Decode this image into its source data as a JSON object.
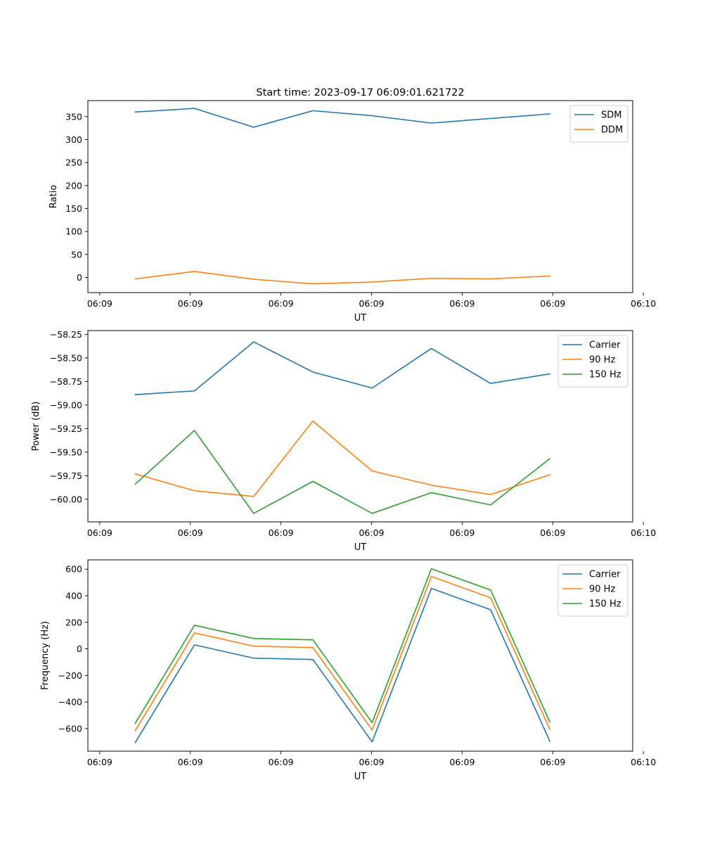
{
  "figure": {
    "title": "Start time: 2023-09-17 06:09:01.621722"
  },
  "chart_data": [
    {
      "type": "line",
      "title": "Start time: 2023-09-17 06:09:01.621722",
      "xlabel": "UT",
      "ylabel": "Ratio",
      "x": [
        1,
        2,
        3,
        4,
        5,
        6,
        7,
        8
      ],
      "xlim": [
        0.2,
        9.4
      ],
      "x_ticks": [
        0.4,
        1.93,
        3.46,
        4.99,
        6.52,
        8.05,
        9.58
      ],
      "x_tick_labels": [
        "06:09",
        "06:09",
        "06:09",
        "06:09",
        "06:09",
        "06:09",
        "06:10"
      ],
      "ylim": [
        -33,
        385
      ],
      "y_ticks": [
        0,
        50,
        100,
        150,
        200,
        250,
        300,
        350
      ],
      "y_tick_labels": [
        "0",
        "50",
        "100",
        "150",
        "200",
        "250",
        "300",
        "350"
      ],
      "legend": "top-right",
      "series": [
        {
          "name": "SDM",
          "color": "#1f77b4",
          "values": [
            360,
            368,
            327,
            363,
            352,
            336,
            346,
            356
          ]
        },
        {
          "name": "DDM",
          "color": "#ff7f0e",
          "values": [
            -3,
            13,
            -4,
            -14,
            -10,
            -2,
            -3,
            3
          ]
        }
      ]
    },
    {
      "type": "line",
      "title": "",
      "xlabel": "UT",
      "ylabel": "Power (dB)",
      "x": [
        1,
        2,
        3,
        4,
        5,
        6,
        7,
        8
      ],
      "xlim": [
        0.2,
        9.4
      ],
      "x_ticks": [
        0.4,
        1.93,
        3.46,
        4.99,
        6.52,
        8.05,
        9.58
      ],
      "x_tick_labels": [
        "06:09",
        "06:09",
        "06:09",
        "06:09",
        "06:09",
        "06:09",
        "06:10"
      ],
      "ylim": [
        -60.24,
        -58.21
      ],
      "y_ticks": [
        -60.0,
        -59.75,
        -59.5,
        -59.25,
        -59.0,
        -58.75,
        -58.5,
        -58.25
      ],
      "y_tick_labels": [
        "−60.00",
        "−59.75",
        "−59.50",
        "−59.25",
        "−59.00",
        "−58.75",
        "−58.50",
        "−58.25"
      ],
      "legend": "top-right",
      "series": [
        {
          "name": "Carrier",
          "color": "#1f77b4",
          "values": [
            -58.89,
            -58.85,
            -58.33,
            -58.65,
            -58.82,
            -58.4,
            -58.77,
            -58.67
          ]
        },
        {
          "name": "90 Hz",
          "color": "#ff7f0e",
          "values": [
            -59.73,
            -59.91,
            -59.97,
            -59.17,
            -59.7,
            -59.85,
            -59.95,
            -59.74
          ]
        },
        {
          "name": "150 Hz",
          "color": "#2ca02c",
          "values": [
            -59.84,
            -59.27,
            -60.15,
            -59.81,
            -60.15,
            -59.93,
            -60.06,
            -59.57
          ]
        }
      ]
    },
    {
      "type": "line",
      "title": "",
      "xlabel": "UT",
      "ylabel": "Frequency (Hz)",
      "x": [
        1,
        2,
        3,
        4,
        5,
        6,
        7,
        8
      ],
      "xlim": [
        0.2,
        9.4
      ],
      "x_ticks": [
        0.4,
        1.93,
        3.46,
        4.99,
        6.52,
        8.05,
        9.58
      ],
      "x_tick_labels": [
        "06:09",
        "06:09",
        "06:09",
        "06:09",
        "06:09",
        "06:09",
        "06:10"
      ],
      "ylim": [
        -770,
        670
      ],
      "y_ticks": [
        -600,
        -400,
        -200,
        0,
        200,
        400,
        600
      ],
      "y_tick_labels": [
        "−600",
        "−400",
        "−200",
        "0",
        "200",
        "400",
        "600"
      ],
      "legend": "top-right",
      "series": [
        {
          "name": "Carrier",
          "color": "#1f77b4",
          "values": [
            -705,
            30,
            -70,
            -80,
            -700,
            455,
            295,
            -695
          ]
        },
        {
          "name": "90 Hz",
          "color": "#ff7f0e",
          "values": [
            -615,
            120,
            20,
            10,
            -610,
            545,
            385,
            -605
          ]
        },
        {
          "name": "150 Hz",
          "color": "#2ca02c",
          "values": [
            -560,
            178,
            78,
            68,
            -555,
            603,
            443,
            -550
          ]
        }
      ]
    }
  ]
}
